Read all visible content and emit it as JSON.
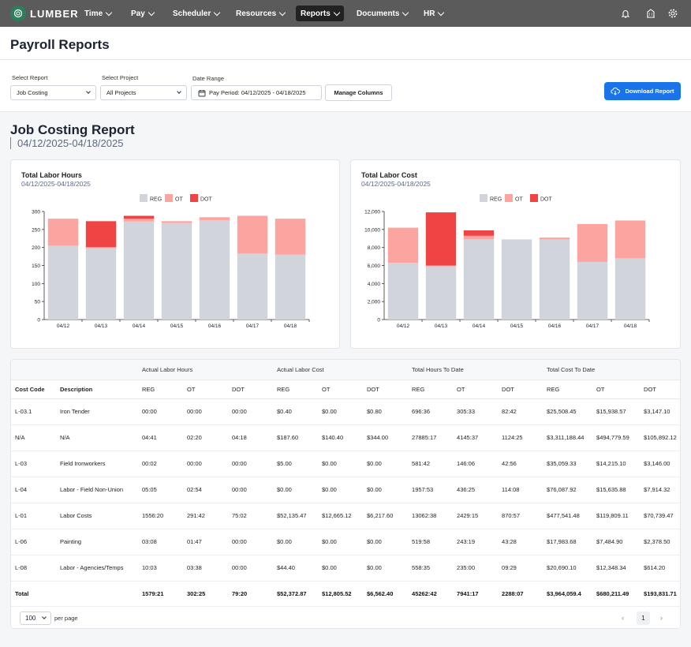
{
  "app": {
    "brand": "LUMBER"
  },
  "nav": {
    "items": [
      {
        "label": "Time"
      },
      {
        "label": "Pay"
      },
      {
        "label": "Scheduler"
      },
      {
        "label": "Resources"
      },
      {
        "label": "Reports"
      },
      {
        "label": "Documents"
      },
      {
        "label": "HR"
      }
    ],
    "active": "Reports"
  },
  "header": {
    "title": "Payroll Reports"
  },
  "filters": {
    "report_label": "Select Report",
    "report_value": "Job Costing",
    "project_label": "Select Project",
    "project_value": "All Projects",
    "date_label": "Date Range",
    "date_value": "Pay Period: 04/12/2025 - 04/18/2025",
    "manage_columns": "Manage Columns",
    "download": "Download Report"
  },
  "report": {
    "title": "Job Costing Report",
    "range": "04/12/2025-04/18/2025"
  },
  "colors": {
    "reg": "#d1d5db",
    "ot": "#fca5a0",
    "dot": "#ef4444",
    "accent": "#1a73e8"
  },
  "chart_data": [
    {
      "type": "bar",
      "stacked": true,
      "title": "Total Labor Hours",
      "subtitle": "04/12/2025-04/18/2025",
      "categories": [
        "04/12",
        "04/13",
        "04/14",
        "04/15",
        "04/16",
        "04/17",
        "04/18"
      ],
      "series": [
        {
          "name": "REG",
          "values": [
            205,
            198,
            272,
            268,
            276,
            183,
            180
          ]
        },
        {
          "name": "OT",
          "values": [
            75,
            3,
            8,
            5,
            8,
            105,
            100
          ]
        },
        {
          "name": "DOT",
          "values": [
            0,
            72,
            8,
            0,
            0,
            0,
            0
          ]
        }
      ],
      "yticks": [
        0,
        50,
        100,
        150,
        200,
        250,
        300
      ],
      "ytick_labels": [
        "0",
        "50",
        "100",
        "150",
        "200",
        "250",
        "300"
      ],
      "ylim": [
        0,
        300
      ],
      "legend": "top-center"
    },
    {
      "type": "bar",
      "stacked": true,
      "title": "Total Labor Cost",
      "subtitle": "04/12/2025-04/18/2025",
      "categories": [
        "04/12",
        "04/13",
        "04/14",
        "04/15",
        "04/16",
        "04/17",
        "04/18"
      ],
      "series": [
        {
          "name": "REG",
          "values": [
            6300,
            5900,
            8900,
            8900,
            8900,
            6400,
            6800
          ]
        },
        {
          "name": "OT",
          "values": [
            3900,
            100,
            400,
            0,
            200,
            4200,
            4200
          ]
        },
        {
          "name": "DOT",
          "values": [
            0,
            5900,
            600,
            0,
            0,
            0,
            0
          ]
        }
      ],
      "yticks": [
        0,
        2000,
        4000,
        6000,
        8000,
        10000,
        12000
      ],
      "ytick_labels": [
        "0",
        "2,000",
        "4,000",
        "6,000",
        "8,000",
        "10,000",
        "12,000"
      ],
      "ylim": [
        0,
        12000
      ],
      "legend": "top-center"
    }
  ],
  "table": {
    "groups": [
      "Actual Labor Hours",
      "Actual Labor Cost",
      "Total Hours To Date",
      "Total Cost To Date"
    ],
    "headers": [
      "Cost Code",
      "Description",
      "REG",
      "OT",
      "DOT",
      "REG",
      "OT",
      "DOT",
      "REG",
      "OT",
      "DOT",
      "REG",
      "OT",
      "DOT"
    ],
    "rows": [
      [
        "L-03.1",
        "Iron Tender",
        "00:00",
        "00:00",
        "00:00",
        "$0.40",
        "$0.00",
        "$0.80",
        "696:36",
        "305:33",
        "82:42",
        "$25,508.45",
        "$15,938.57",
        "$3,147.10"
      ],
      [
        "N/A",
        "N/A",
        "04:41",
        "02:20",
        "04:18",
        "$187.60",
        "$140.40",
        "$344.00",
        "27885:17",
        "4145:37",
        "1124:25",
        "$3,311,188.44",
        "$494,779.59",
        "$105,892.12"
      ],
      [
        "L-03",
        "Field Ironworkers",
        "00:02",
        "00:00",
        "00:00",
        "$5.00",
        "$0.00",
        "$0.00",
        "581:42",
        "146:06",
        "42:56",
        "$35,059.33",
        "$14,215.10",
        "$3,146.00"
      ],
      [
        "L-04",
        "Labor - Field Non-Union",
        "05:05",
        "02:54",
        "00:00",
        "$0.00",
        "$0.00",
        "$0.00",
        "1957:53",
        "436:25",
        "114:08",
        "$76,087.92",
        "$15,635.88",
        "$7,914.32"
      ],
      [
        "L-01",
        "Labor Costs",
        "1556:20",
        "291:42",
        "75:02",
        "$52,135.47",
        "$12,665.12",
        "$6,217.60",
        "13062:38",
        "2429:15",
        "870:57",
        "$477,541.48",
        "$119,809.11",
        "$70,739.47"
      ],
      [
        "L-06",
        "Painting",
        "03:08",
        "01:47",
        "00:00",
        "$0.00",
        "$0.00",
        "$0.00",
        "519:58",
        "243:19",
        "43:28",
        "$17,983.68",
        "$7,484.90",
        "$2,378.50"
      ],
      [
        "L-08",
        "Labor - Agencies/Temps",
        "10:03",
        "03:38",
        "00:00",
        "$44.40",
        "$0.00",
        "$0.00",
        "558:35",
        "235:00",
        "09:29",
        "$20,690.10",
        "$12,348.34",
        "$614.20"
      ]
    ],
    "totals": [
      "Total",
      "",
      "1579:21",
      "302:25",
      "79:20",
      "$52,372.87",
      "$12,805.52",
      "$6,562.40",
      "45262:42",
      "7941:17",
      "2288:07",
      "$3,964,059.4",
      "$680,211.49",
      "$193,831.71"
    ]
  },
  "pagination": {
    "per_page": "100",
    "per_page_label": "per page",
    "prev": "‹",
    "next": "›",
    "page": "1"
  }
}
